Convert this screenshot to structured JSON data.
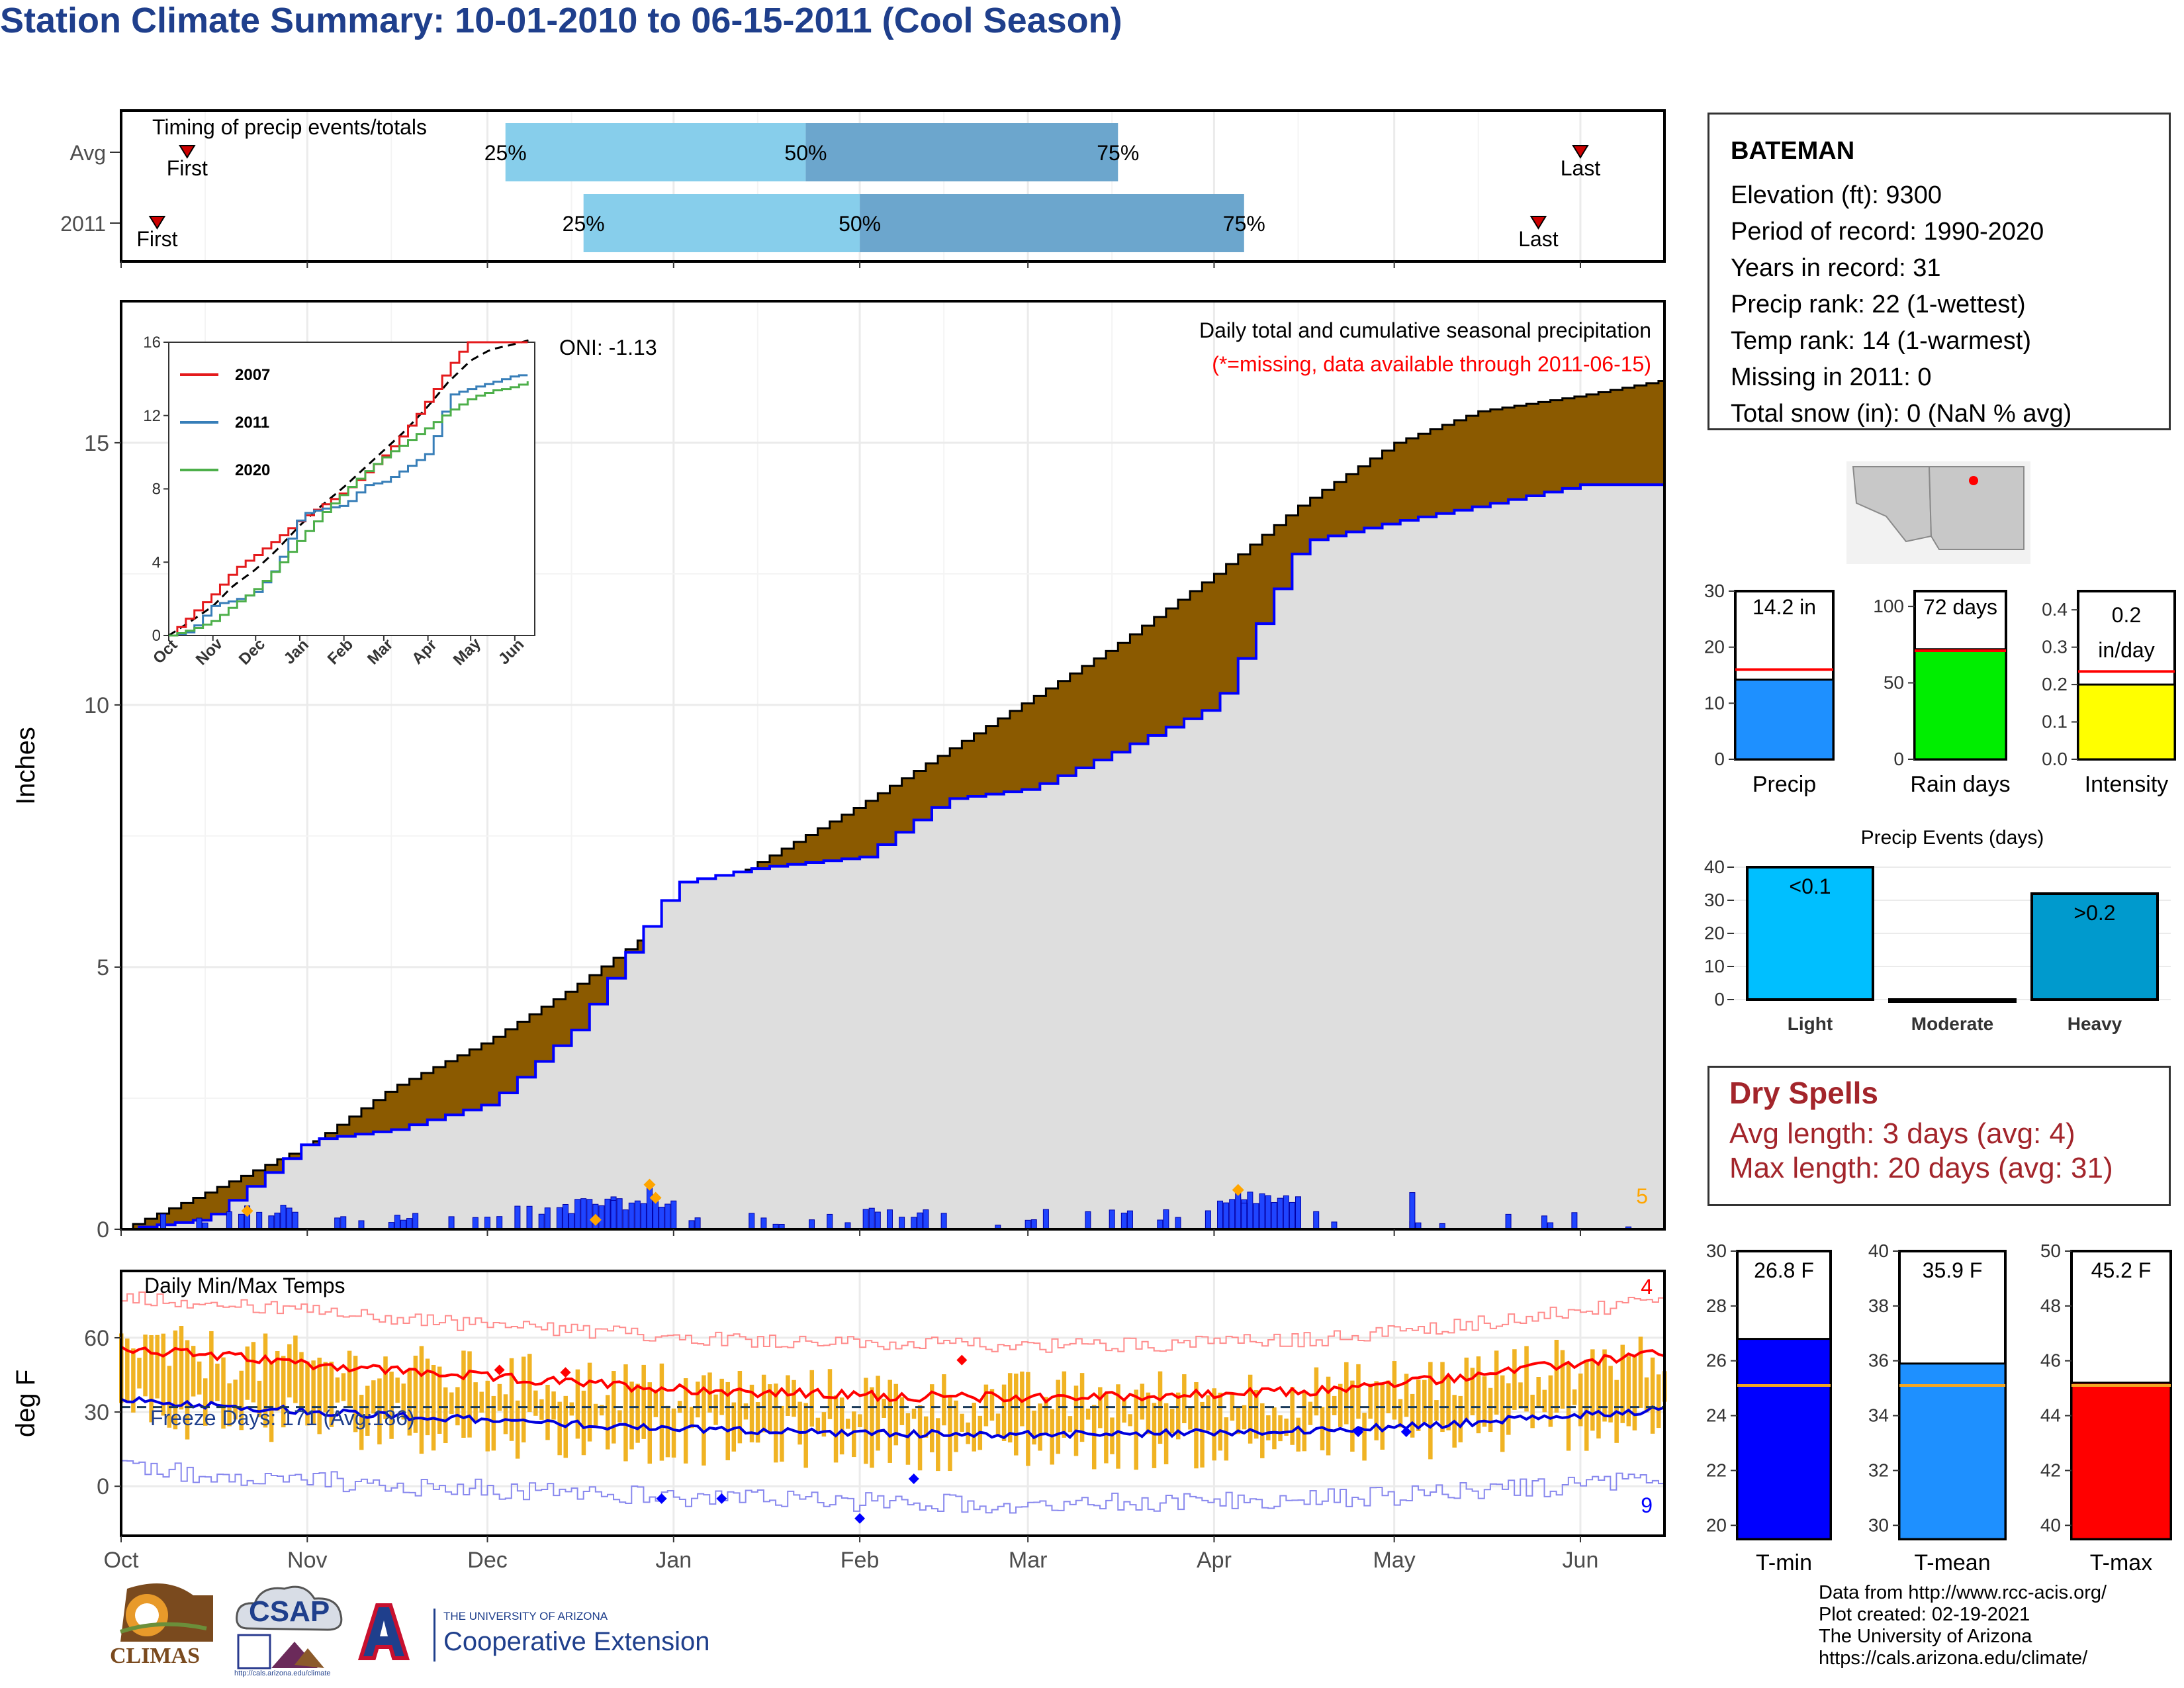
{
  "title": "Station Climate Summary: 10-01-2010 to 06-15-2011 (Cool Season)",
  "timing": {
    "title": "Timing of precip events/totals",
    "rows": [
      {
        "label": "Avg",
        "first": "2010-10-12",
        "q25": "2010-12-04",
        "q50": "2011-01-23",
        "q75": "2011-03-16",
        "last": "2011-06-01"
      },
      {
        "label": "2011",
        "first": "2010-10-07",
        "q25": "2010-12-17",
        "q50": "2011-02-01",
        "q75": "2011-04-06",
        "last": "2011-05-25"
      }
    ],
    "first_label": "First",
    "last_label": "Last",
    "q_labels": [
      "25%",
      "50%",
      "75%"
    ],
    "colors": {
      "light": "#87ceeb",
      "dark": "#6ca6cd",
      "marker": "#cc0000"
    }
  },
  "precip_panel": {
    "ylabel": "Inches",
    "yticks": [
      0,
      5,
      10,
      15
    ],
    "ylim": [
      0,
      17.7
    ],
    "title": "Daily total and cumulative seasonal precipitation",
    "subtitle": "(*=missing, data available through 2011-06-15)",
    "oni": "ONI: -1.13",
    "corner_count": "5",
    "colors": {
      "avg_fill": "#8b5a00",
      "obs_fill": "#dedede",
      "obs_line": "#0000ff",
      "daily_bar": "#1f44ff",
      "extreme": "#ffa500"
    }
  },
  "inset": {
    "legend": [
      "2007",
      "2011",
      "2020"
    ],
    "colors": [
      "#e41a1c",
      "#377eb8",
      "#4daf4a"
    ],
    "yticks": [
      0,
      4,
      8,
      12,
      16
    ],
    "months": [
      "Oct",
      "Nov",
      "Dec",
      "Jan",
      "Feb",
      "Mar",
      "Apr",
      "May",
      "Jun"
    ]
  },
  "temp_panel": {
    "ylabel": "deg F",
    "title": "Daily Min/Max Temps",
    "freeze": "Freeze Days: 171 (Avg:186)",
    "yticks": [
      0,
      30,
      60
    ],
    "ylim": [
      -20,
      87
    ],
    "count_top": "4",
    "count_bottom": "9",
    "colors": {
      "bar": "#f0b323",
      "max_avg": "#ff0000",
      "min_avg": "#0000dd",
      "max_rec": "#ff8c8c",
      "min_rec": "#8888ee"
    }
  },
  "xaxis": {
    "months": [
      "Oct",
      "Nov",
      "Dec",
      "Jan",
      "Feb",
      "Mar",
      "Apr",
      "May",
      "Jun"
    ]
  },
  "station": {
    "name": "BATEMAN",
    "lines": [
      "Elevation (ft): 9300",
      "Period of record: 1990-2020",
      "Years in record: 31",
      "Precip rank: 22 (1-wettest)",
      "Temp rank: 14 (1-warmest)",
      "Missing in 2011: 0",
      "Total snow (in): 0 (NaN % avg)"
    ]
  },
  "summary_bars": [
    {
      "name": "Precip",
      "value": 14.2,
      "label": "14.2 in",
      "avg": 16,
      "ylim": [
        0,
        30
      ],
      "yticks": [
        "0",
        "10",
        "20",
        "30"
      ],
      "ytick_values": [
        0,
        10,
        20,
        30
      ],
      "color": "#1e90ff"
    },
    {
      "name": "Rain days",
      "value": 72,
      "label": "72 days",
      "avg": 71,
      "ylim": [
        0,
        110
      ],
      "yticks": [
        "0",
        "50",
        "100"
      ],
      "ytick_values": [
        0,
        50,
        100
      ],
      "color": "#00ee00"
    },
    {
      "name": "Intensity",
      "value": 0.2,
      "label1": "0.2",
      "label2": "in/day",
      "avg": 0.235,
      "ylim": [
        0,
        0.45
      ],
      "yticks": [
        "0.0",
        "0.1",
        "0.2",
        "0.3",
        "0.4"
      ],
      "ytick_values": [
        0,
        0.1,
        0.2,
        0.3,
        0.4
      ],
      "color": "#ffff00"
    }
  ],
  "events": {
    "title": "Precip Events (days)",
    "categories": [
      "Light",
      "Moderate",
      "Heavy"
    ],
    "values": [
      40,
      0,
      32
    ],
    "labels": [
      "<0.1",
      "",
      ">0.2"
    ],
    "yticks": [
      0,
      10,
      20,
      30,
      40
    ],
    "colors": [
      "#00bfff",
      "#1e90ff",
      "#009acd"
    ]
  },
  "dry_spells": {
    "title": "Dry Spells",
    "avg": "Avg length: 3 days (avg: 4)",
    "max": "Max length: 20 days (avg: 31)"
  },
  "temp_bars": [
    {
      "name": "T-min",
      "value": 26.8,
      "label": "26.8 F",
      "avg": 25.1,
      "ylim": [
        19.5,
        30
      ],
      "yticks": [
        20,
        22,
        24,
        26,
        28,
        30
      ],
      "color": "#0000ff"
    },
    {
      "name": "T-mean",
      "value": 35.9,
      "label": "35.9 F",
      "avg": 35.1,
      "ylim": [
        29.5,
        40
      ],
      "yticks": [
        30,
        32,
        34,
        36,
        38,
        40
      ],
      "color": "#1e90ff"
    },
    {
      "name": "T-max",
      "value": 45.2,
      "label": "45.2 F",
      "avg": 45.1,
      "ylim": [
        39.5,
        50
      ],
      "yticks": [
        40,
        42,
        44,
        46,
        48,
        50
      ],
      "color": "#ff0000"
    }
  ],
  "credits": [
    "Data from http://www.rcc-acis.org/",
    "Plot created: 02-19-2021",
    "The University of Arizona",
    "https://cals.arizona.edu/climate/"
  ],
  "logos": {
    "climas": "CLIMAS",
    "csap": "CSAP",
    "csap_url": "http://cals.arizona.edu/climate",
    "ua_small": "THE UNIVERSITY OF ARIZONA",
    "ua_big": "Cooperative Extension"
  },
  "chart_data": {
    "type": "area",
    "title": "Daily total and cumulative seasonal precipitation",
    "ylabel": "Inches",
    "ylim": [
      0,
      17.7
    ],
    "series": [
      {
        "name": "avg",
        "x": [
          "10-01",
          "10-15",
          "11-01",
          "11-15",
          "12-01",
          "12-15",
          "01-01",
          "01-15",
          "02-01",
          "02-15",
          "03-01",
          "03-15",
          "04-01",
          "04-15",
          "05-01",
          "05-15",
          "06-01",
          "06-15"
        ],
        "values": [
          0.0,
          0.7,
          1.6,
          2.7,
          3.6,
          4.6,
          6.0,
          7.0,
          8.1,
          9.1,
          10.1,
          11.1,
          12.5,
          13.8,
          15.0,
          15.6,
          15.9,
          16.2
        ]
      },
      {
        "name": "2011",
        "x": [
          "10-01",
          "10-15",
          "11-01",
          "11-15",
          "12-01",
          "12-15",
          "01-01",
          "01-15",
          "02-01",
          "02-15",
          "03-01",
          "03-15",
          "04-01",
          "04-15",
          "05-01",
          "05-15",
          "06-01",
          "06-15"
        ],
        "values": [
          0.0,
          0.2,
          1.7,
          1.9,
          2.4,
          3.8,
          6.6,
          6.9,
          7.1,
          8.2,
          8.4,
          9.1,
          10.0,
          13.1,
          13.5,
          13.8,
          14.2,
          14.2
        ]
      }
    ]
  }
}
